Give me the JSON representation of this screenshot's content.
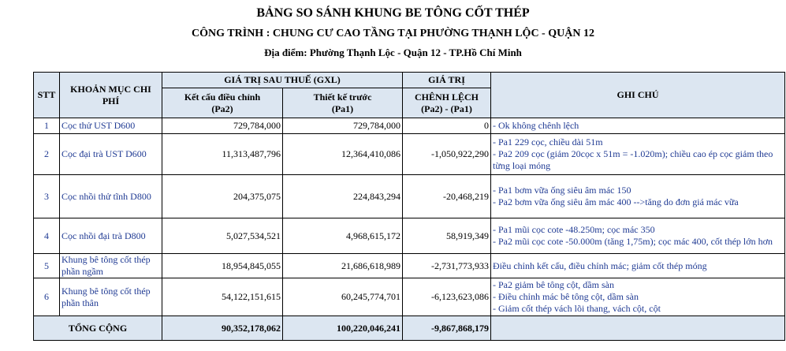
{
  "header": {
    "title": "BẢNG SO SÁNH KHUNG BE TÔNG CỐT THÉP",
    "subtitle": "CÔNG TRÌNH : CHUNG CƯ CAO TẦNG TẠI PHƯỜNG THẠNH LỘC - QUẬN 12",
    "location": "Địa điểm: Phường Thạnh Lộc - Quận 12 - TP.Hồ Chí Minh"
  },
  "table": {
    "columns": {
      "stt": "STT",
      "item": "KHOẢN MỤC CHI PHÍ",
      "value_group": "GIÁ TRỊ SAU THUẾ (GXL)",
      "pa2": "Kết cấu điều chỉnh",
      "pa2_code": "(Pa2)",
      "pa1": "Thiết kế trước",
      "pa1_code": "(Pa1)",
      "diff_top": "GIÁ TRỊ",
      "diff": "CHÊNH LỆCH",
      "diff_code": "(Pa2) - (Pa1)",
      "notes": "GHI CHÚ"
    },
    "rows": [
      {
        "stt": "1",
        "item": "Cọc thử UST D600",
        "pa2": "729,784,000",
        "pa1": "729,784,000",
        "diff": "0",
        "notes": [
          "- Ok không chênh lệch"
        ]
      },
      {
        "stt": "2",
        "item": "Cọc đại trà UST D600",
        "pa2": "11,313,487,796",
        "pa1": "12,364,410,086",
        "diff": "-1,050,922,290",
        "notes": [
          "- Pa1 229 cọc, chiều dài 51m",
          "- Pa2 209 cọc (giảm 20cọc x 51m = -1.020m); chiều cao ép cọc giảm theo từng loại móng"
        ]
      },
      {
        "stt": "3",
        "item": "Cọc nhồi thử tĩnh D800",
        "pa2": "204,375,075",
        "pa1": "224,843,294",
        "diff": "-20,468,219",
        "notes": [
          "- Pa1 bơm vữa ống siêu âm mác 150",
          "- Pa2 bơm vữa ống siêu âm mác 400 -->tăng do đơn giá mác vữa"
        ]
      },
      {
        "stt": "4",
        "item": "Cọc nhồi đại trà D800",
        "pa2": "5,027,534,521",
        "pa1": "4,968,615,172",
        "diff": "58,919,349",
        "notes": [
          "- Pa1 mũi cọc cote -48.250m; cọc mác 350",
          "- Pa2 mũi cọc cote -50.000m (tăng 1,75m); cọc mác 400, cốt thép lớn hơn"
        ]
      },
      {
        "stt": "5",
        "item": "Khung bê tông cốt thép phần ngầm",
        "pa2": "18,954,845,055",
        "pa1": "21,686,618,989",
        "diff": "-2,731,773,933",
        "notes": [
          "Điều chỉnh kết cấu, điều chỉnh mác; giảm cốt thép móng"
        ]
      },
      {
        "stt": "6",
        "item": "Khung bê tông cốt thép phần thân",
        "pa2": "54,122,151,615",
        "pa1": "60,245,774,701",
        "diff": "-6,123,623,086",
        "notes": [
          "- Pa2 giảm bê tông cột, dầm sàn",
          "- Điều chỉnh mác bê tông cột, dầm sàn",
          "- Giảm cốt thép vách lõi thang, vách cột, cột"
        ]
      }
    ],
    "total": {
      "label": "TỔNG CỘNG",
      "pa2": "90,352,178,062",
      "pa1": "100,220,046,241",
      "diff": "-9,867,868,179"
    }
  }
}
